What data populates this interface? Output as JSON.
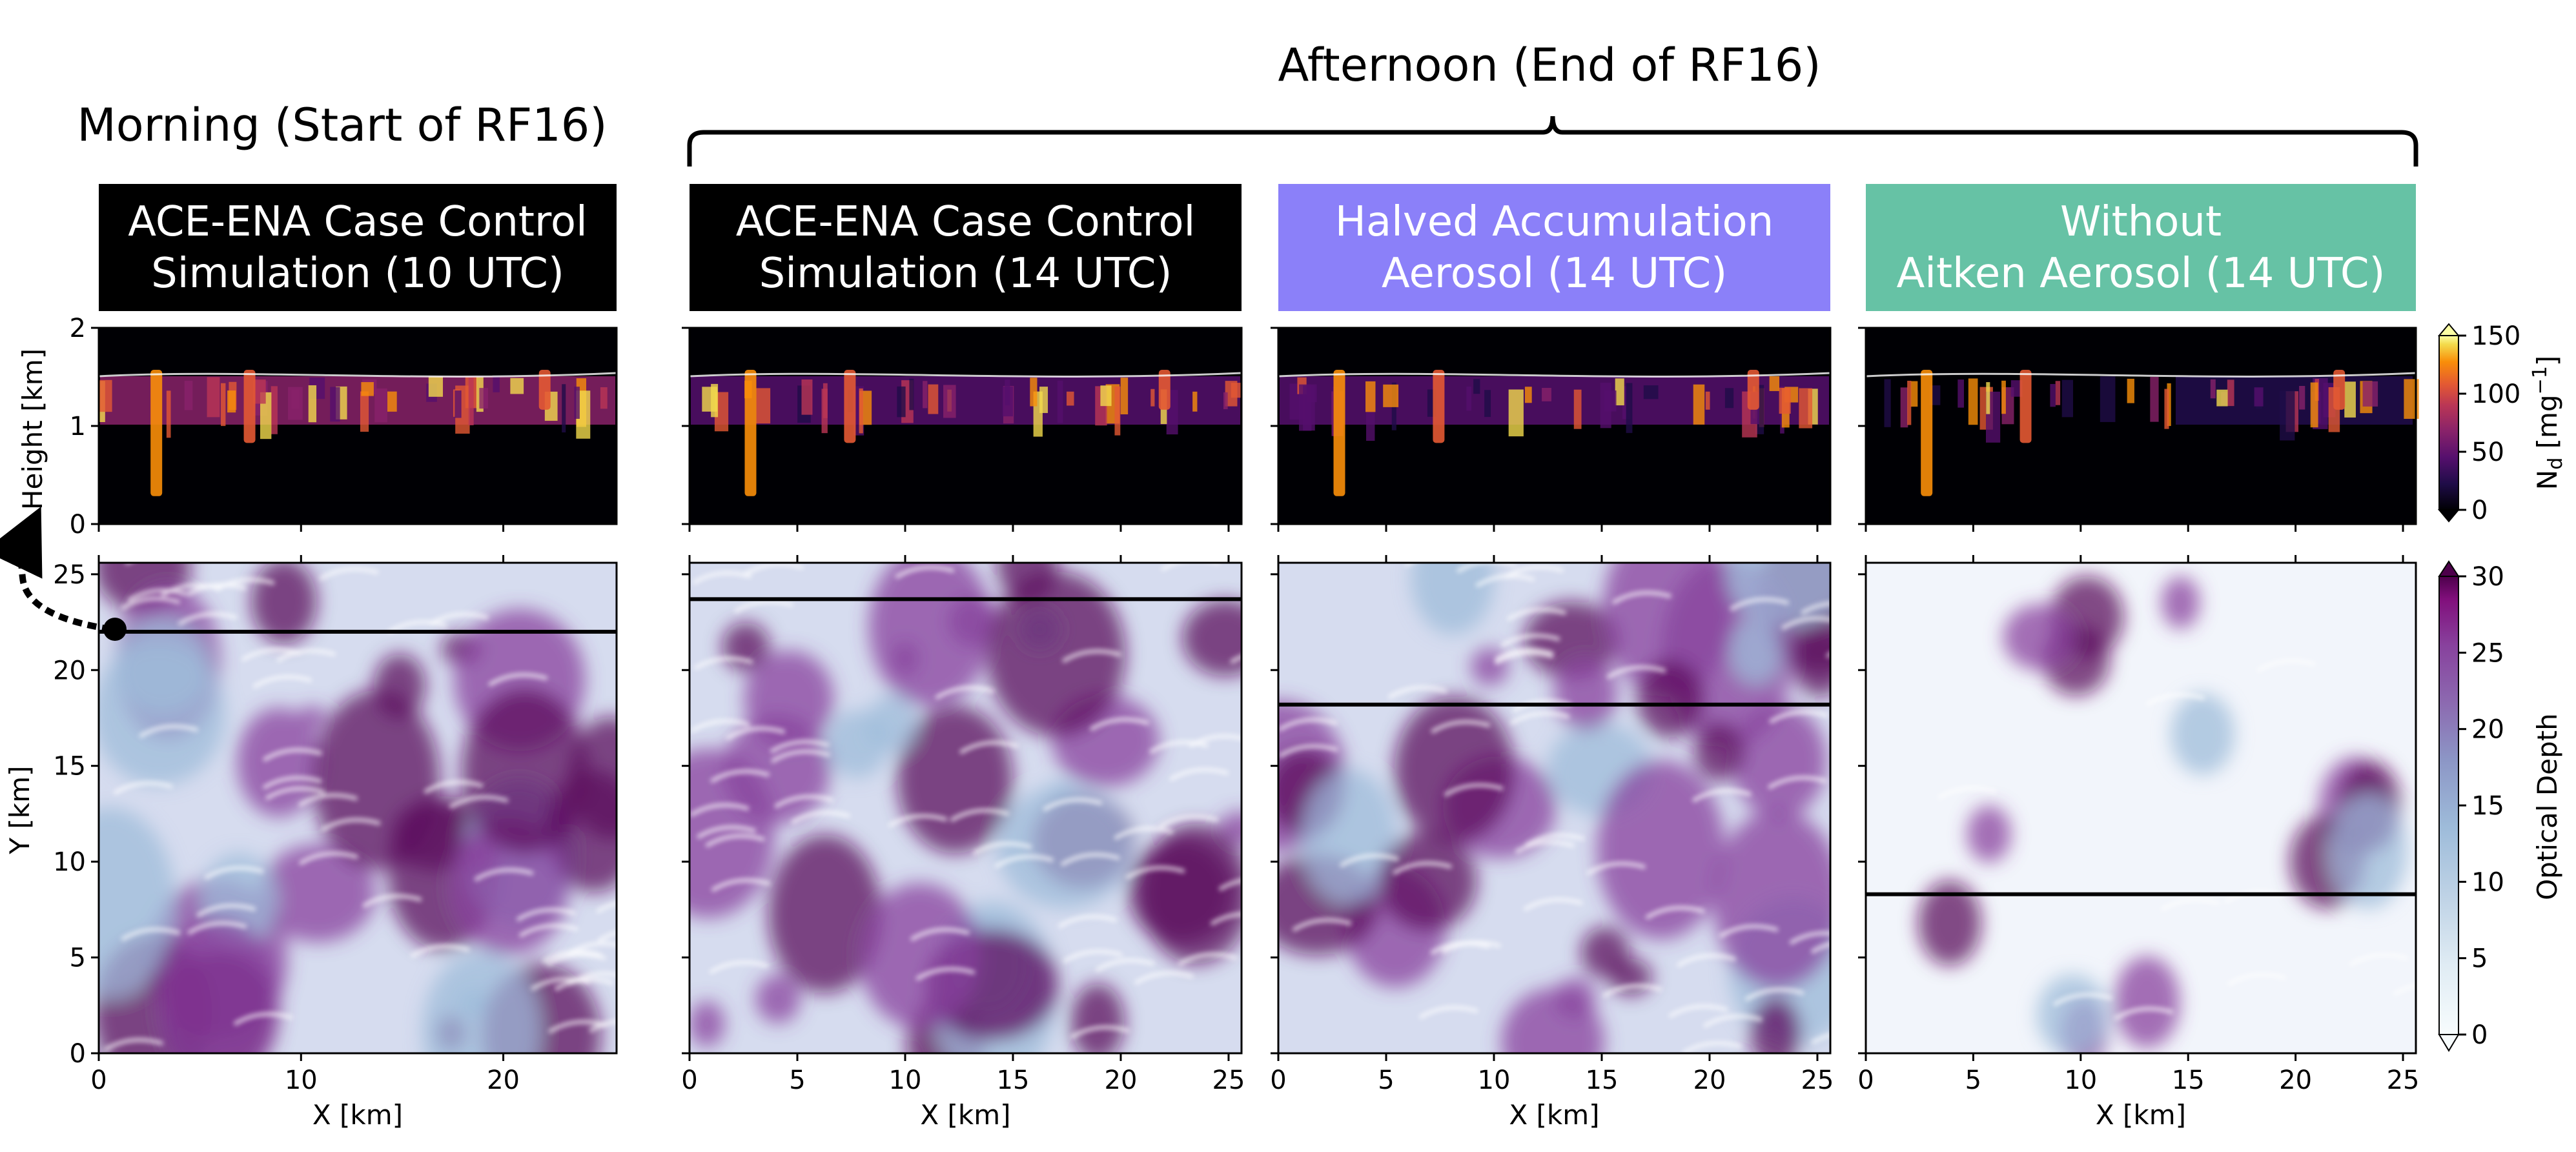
{
  "figure": {
    "morning_label": "Morning (Start of RF16)",
    "afternoon_label": "Afternoon (End of RF16)"
  },
  "panels": [
    {
      "title_line1": "ACE-ENA Case Control",
      "title_line2": "Simulation (10 UTC)",
      "banner_color": "#000000",
      "x_ticks": [
        "0",
        "10",
        "20"
      ]
    },
    {
      "title_line1": "ACE-ENA Case Control",
      "title_line2": "Simulation (14 UTC)",
      "banner_color": "#000000",
      "x_ticks": [
        "0",
        "5",
        "10",
        "15",
        "20",
        "25"
      ]
    },
    {
      "title_line1": "Halved Accumulation",
      "title_line2": "Aerosol (14 UTC)",
      "banner_color": "#8b80f9",
      "x_ticks": [
        "0",
        "5",
        "10",
        "15",
        "20",
        "25"
      ]
    },
    {
      "title_line1": "Without",
      "title_line2": "Aitken Aerosol (14 UTC)",
      "banner_color": "#66c2a5",
      "x_ticks": [
        "0",
        "5",
        "10",
        "15",
        "20",
        "25"
      ]
    }
  ],
  "chart_data": [
    {
      "type": "heatmap",
      "description_role": "vertical cross-section of droplet number concentration",
      "xlabel": "",
      "ylabel": "Height [km]",
      "ylim": [
        0,
        2
      ],
      "y_ticks": [
        "0",
        "1",
        "2"
      ],
      "colorbar": {
        "label": "N_d [mg^-1]",
        "ticks": [
          "0",
          "50",
          "100",
          "150"
        ],
        "range": [
          0,
          150
        ],
        "colormap": "inferno"
      }
    },
    {
      "type": "heatmap",
      "description_role": "horizontal map of cloud optical depth",
      "xlabel": "X [km]",
      "ylabel": "Y [km]",
      "xlim": [
        0,
        25.6
      ],
      "ylim": [
        0,
        25.6
      ],
      "y_ticks": [
        "0",
        "5",
        "10",
        "15",
        "20",
        "25"
      ],
      "colorbar": {
        "label": "Optical Depth",
        "ticks": [
          "0",
          "5",
          "10",
          "15",
          "20",
          "25",
          "30"
        ],
        "range": [
          0,
          30
        ],
        "colormap": "BuPu"
      },
      "cross_section_lines_y_km": [
        22,
        23.7,
        18.2,
        8.3
      ]
    }
  ],
  "colors": {
    "inferno_dark": "#000004",
    "bupu_dark": "#4d004b",
    "bupu_light": "#f7fcfd"
  }
}
